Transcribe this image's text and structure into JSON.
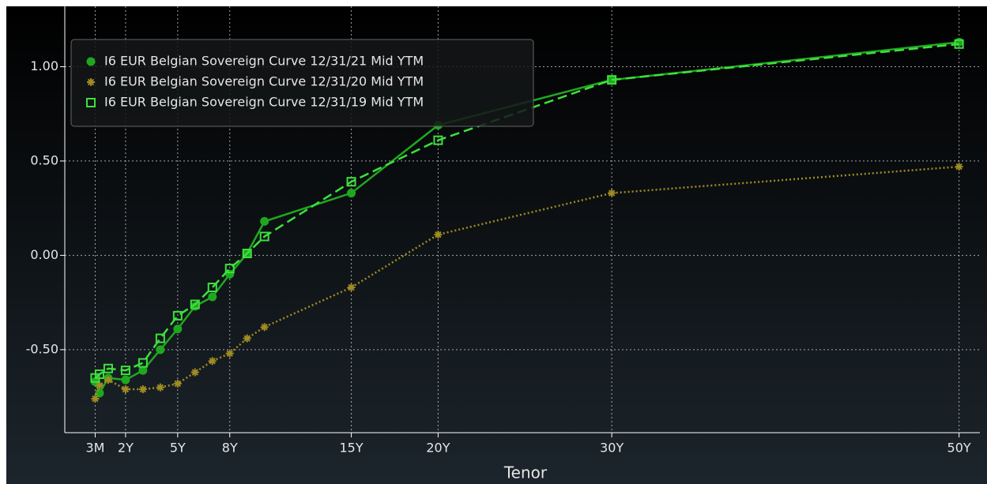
{
  "chart_data": {
    "type": "line",
    "x_label": "Tenor",
    "x": [
      0.25,
      0.5,
      1,
      2,
      3,
      4,
      5,
      6,
      7,
      8,
      9,
      10,
      15,
      20,
      30,
      50
    ],
    "series": [
      {
        "name": "I6 EUR Belgian Sovereign Curve 12/31/21 Mid YTM",
        "color": "#1fa81f",
        "dash": "solid",
        "marker": "circle",
        "values": [
          -0.67,
          -0.73,
          -0.65,
          -0.66,
          -0.61,
          -0.5,
          -0.39,
          -0.27,
          -0.22,
          -0.1,
          0.01,
          0.18,
          0.33,
          0.69,
          0.93,
          1.13
        ]
      },
      {
        "name": "I6 EUR Belgian Sovereign Curve 12/31/20 Mid YTM",
        "color": "#a08c22",
        "dash": "dotted",
        "marker": "asterisk",
        "values": [
          -0.76,
          -0.69,
          -0.66,
          -0.71,
          -0.71,
          -0.7,
          -0.68,
          -0.62,
          -0.56,
          -0.52,
          -0.44,
          -0.38,
          -0.17,
          0.11,
          0.33,
          0.47
        ]
      },
      {
        "name": "I6 EUR Belgian Sovereign Curve 12/31/19 Mid YTM",
        "color": "#3ee03e",
        "dash": "dashed",
        "marker": "square",
        "values": [
          -0.65,
          -0.63,
          -0.6,
          -0.61,
          -0.57,
          -0.44,
          -0.32,
          -0.26,
          -0.17,
          -0.07,
          0.01,
          0.1,
          0.39,
          0.61,
          0.93,
          1.12
        ]
      }
    ],
    "xlim": [
      -1.5,
      51.2
    ],
    "xticks": [
      {
        "value": 0.25,
        "label": "3M"
      },
      {
        "value": 2,
        "label": "2Y"
      },
      {
        "value": 5,
        "label": "5Y"
      },
      {
        "value": 8,
        "label": "8Y"
      },
      {
        "value": 15,
        "label": "15Y"
      },
      {
        "value": 20,
        "label": "20Y"
      },
      {
        "value": 30,
        "label": "30Y"
      },
      {
        "value": 50,
        "label": "50Y"
      }
    ],
    "ylim": [
      -0.94,
      1.32
    ],
    "yticks": [
      {
        "value": 1,
        "label": "1.00"
      },
      {
        "value": 0.5,
        "label": "0.50"
      },
      {
        "value": 0,
        "label": "0.00"
      },
      {
        "value": -0.5,
        "label": "-0.50"
      }
    ],
    "grid": true,
    "legend": "upper left"
  }
}
